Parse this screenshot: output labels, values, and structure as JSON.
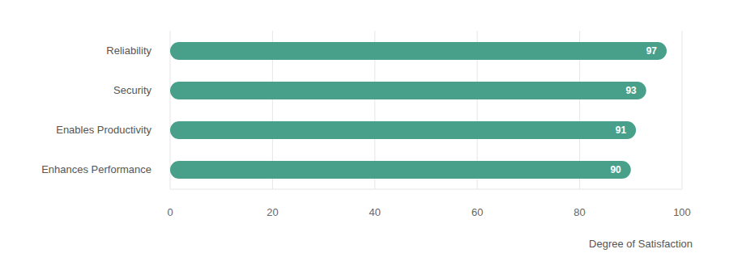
{
  "chart_data": {
    "type": "bar",
    "orientation": "horizontal",
    "categories": [
      "Reliability",
      "Security",
      "Enables Productivity",
      "Enhances Performance"
    ],
    "values": [
      97,
      93,
      91,
      90
    ],
    "color": "#48a08a",
    "x_label": "Degree of Satisfaction",
    "xlim": [
      0,
      100
    ],
    "xticks": [
      0,
      20,
      40,
      60,
      80,
      100
    ],
    "grid": true,
    "data_labels": true
  }
}
